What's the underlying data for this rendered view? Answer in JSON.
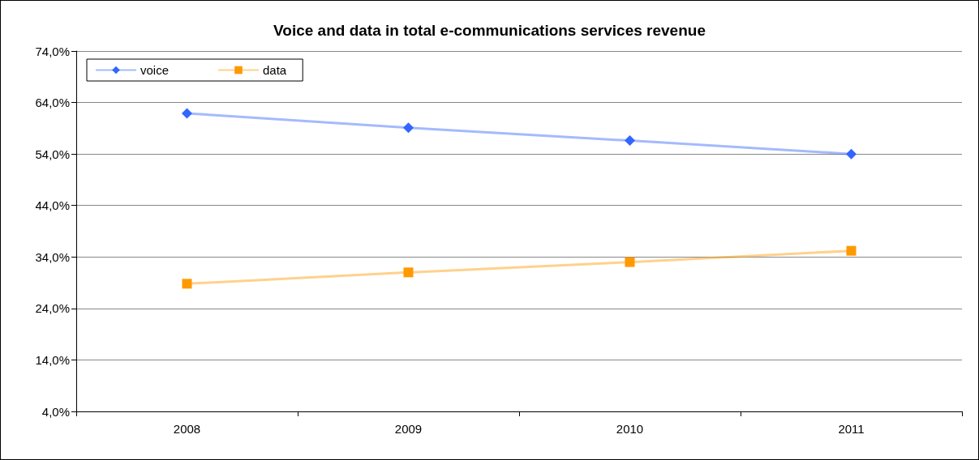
{
  "chart_data": {
    "type": "line",
    "title": "Voice and data in total e-communications services revenue",
    "categories": [
      "2008",
      "2009",
      "2010",
      "2011"
    ],
    "series": [
      {
        "name": "voice",
        "color": "#3366ff",
        "marker": "diamond",
        "values": [
          61.9,
          59.1,
          56.6,
          54.0
        ]
      },
      {
        "name": "data",
        "color": "#ff9900",
        "marker": "square",
        "values": [
          28.8,
          31.0,
          33.0,
          35.2
        ]
      }
    ],
    "ylim": [
      4,
      74
    ],
    "yticks": [
      {
        "value": 4,
        "label": "4,0%"
      },
      {
        "value": 14,
        "label": "14,0%"
      },
      {
        "value": 24,
        "label": "24,0%"
      },
      {
        "value": 34,
        "label": "34,0%"
      },
      {
        "value": 44,
        "label": "44,0%"
      },
      {
        "value": 54,
        "label": "54,0%"
      },
      {
        "value": 64,
        "label": "64,0%"
      },
      {
        "value": 74,
        "label": "74,0%"
      }
    ],
    "grid": "y",
    "legend": "top left",
    "line_style": "solid"
  }
}
